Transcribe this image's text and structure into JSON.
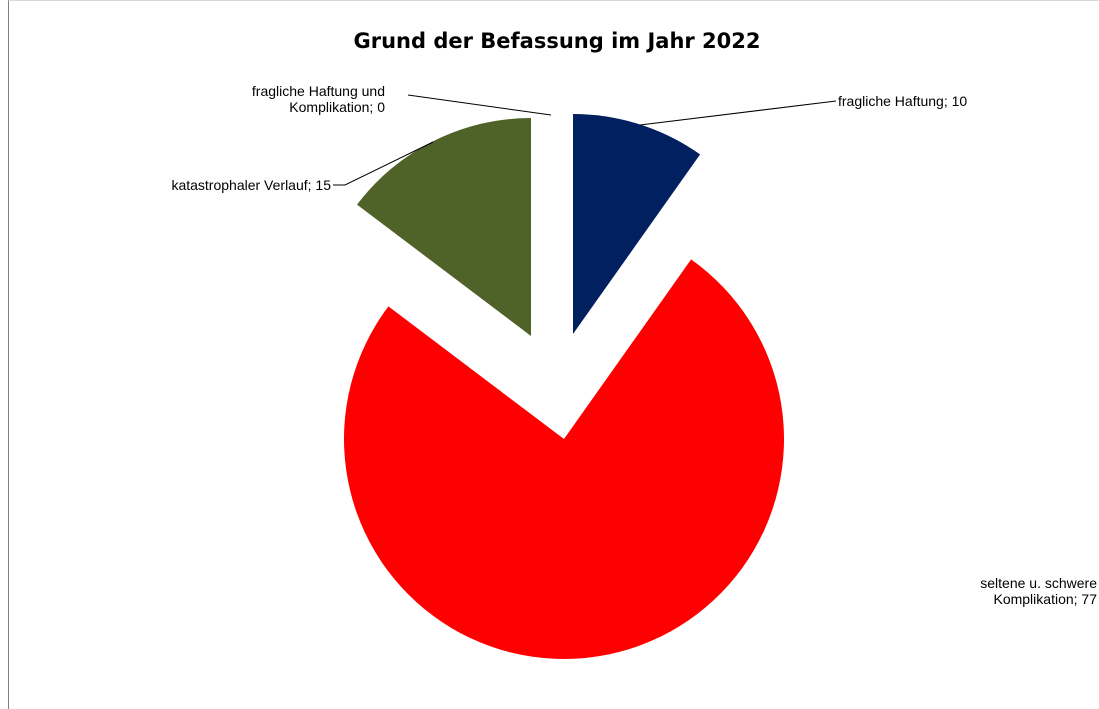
{
  "chart_data": {
    "type": "pie",
    "title": "Grund der Befassung im Jahr 2022",
    "slices": [
      {
        "name": "fragliche Haftung",
        "value": 10,
        "color": "#002060",
        "label_lines": [
          "fragliche Haftung; 10"
        ]
      },
      {
        "name": "seltene u. schwere Komplikation",
        "value": 77,
        "color": "#ff0000",
        "label_lines": [
          "seltene u. schwere",
          "Komplikation;  77"
        ]
      },
      {
        "name": "katastrophaler Verlauf",
        "value": 15,
        "color": "#4f6228",
        "label_lines": [
          "katastrophaler Verlauf; 15"
        ]
      },
      {
        "name": "fragliche Haftung und Komplikation",
        "value": 0,
        "color": "#7f7f7f",
        "label_lines": [
          "fragliche Haftung und",
          "Komplikation;  0"
        ]
      }
    ],
    "exploded": true,
    "legend": "none"
  }
}
